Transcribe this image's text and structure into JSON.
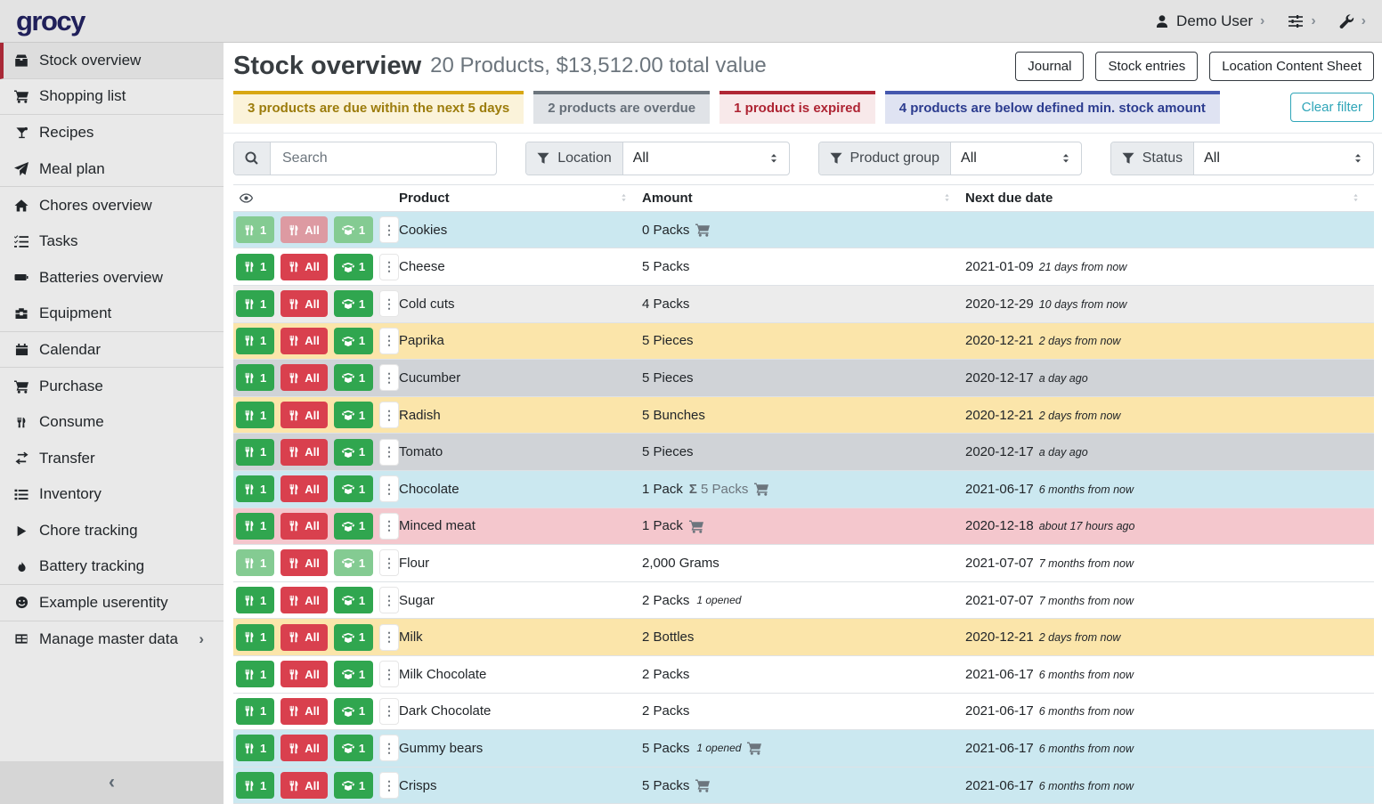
{
  "topbar": {
    "logo": "grocy",
    "user_label": "Demo User"
  },
  "sidebar": {
    "items": [
      {
        "label": "Stock overview",
        "icon": "box",
        "active": true,
        "divider_after": true
      },
      {
        "label": "Shopping list",
        "icon": "cart",
        "divider_after": true
      },
      {
        "label": "Recipes",
        "icon": "glass"
      },
      {
        "label": "Meal plan",
        "icon": "paper-plane",
        "divider_after": true
      },
      {
        "label": "Chores overview",
        "icon": "home"
      },
      {
        "label": "Tasks",
        "icon": "tasks"
      },
      {
        "label": "Batteries overview",
        "icon": "battery"
      },
      {
        "label": "Equipment",
        "icon": "toolbox",
        "divider_after": true
      },
      {
        "label": "Calendar",
        "icon": "calendar",
        "divider_after": true
      },
      {
        "label": "Purchase",
        "icon": "cart"
      },
      {
        "label": "Consume",
        "icon": "utensils"
      },
      {
        "label": "Transfer",
        "icon": "exchange"
      },
      {
        "label": "Inventory",
        "icon": "list"
      },
      {
        "label": "Chore tracking",
        "icon": "play"
      },
      {
        "label": "Battery tracking",
        "icon": "fire",
        "divider_after": true
      },
      {
        "label": "Example userentity",
        "icon": "smiley",
        "divider_after": true
      },
      {
        "label": "Manage master data",
        "icon": "table",
        "has_chevron": true
      }
    ],
    "collapse_glyph": "‹"
  },
  "header": {
    "title": "Stock overview",
    "subtitle": "20 Products, $13,512.00 total value",
    "buttons": [
      "Journal",
      "Stock entries",
      "Location Content Sheet"
    ]
  },
  "banners": [
    {
      "text": "3 products are due within the next 5 days",
      "type": "warning"
    },
    {
      "text": "2 products are overdue",
      "type": "secondary"
    },
    {
      "text": "1 product is expired",
      "type": "danger"
    },
    {
      "text": "4 products are below defined min. stock amount",
      "type": "primary"
    }
  ],
  "clear_filter": "Clear filter",
  "filters": {
    "search_placeholder": "Search",
    "groups": [
      {
        "label": "Location",
        "value": "All"
      },
      {
        "label": "Product group",
        "value": "All"
      },
      {
        "label": "Status",
        "value": "All"
      }
    ]
  },
  "table": {
    "columns": [
      "Product",
      "Amount",
      "Next due date"
    ],
    "action_labels": {
      "consume_one": "1",
      "consume_all": "All",
      "open_one": "1"
    },
    "rows": [
      {
        "product": "Cookies",
        "amount": "0 Packs",
        "cart": true,
        "date": "",
        "rel": "",
        "bg": "info",
        "disabled": [
          "consume1",
          "consume_all",
          "open1"
        ]
      },
      {
        "product": "Cheese",
        "amount": "5 Packs",
        "date": "2021-01-09",
        "rel": "21 days from now",
        "bg": "none"
      },
      {
        "product": "Cold cuts",
        "amount": "4 Packs",
        "date": "2020-12-29",
        "rel": "10 days from now",
        "bg": "stripe"
      },
      {
        "product": "Paprika",
        "amount": "5 Pieces",
        "date": "2020-12-21",
        "rel": "2 days from now",
        "bg": "warning"
      },
      {
        "product": "Cucumber",
        "amount": "5 Pieces",
        "date": "2020-12-17",
        "rel": "a day ago",
        "bg": "secondary"
      },
      {
        "product": "Radish",
        "amount": "5 Bunches",
        "date": "2020-12-21",
        "rel": "2 days from now",
        "bg": "warning"
      },
      {
        "product": "Tomato",
        "amount": "5 Pieces",
        "date": "2020-12-17",
        "rel": "a day ago",
        "bg": "secondary"
      },
      {
        "product": "Chocolate",
        "amount": "1 Pack",
        "sum": "5 Packs",
        "cart": true,
        "date": "2021-06-17",
        "rel": "6 months from now",
        "bg": "info"
      },
      {
        "product": "Minced meat",
        "amount": "1 Pack",
        "cart": true,
        "date": "2020-12-18",
        "rel": "about 17 hours ago",
        "bg": "danger"
      },
      {
        "product": "Flour",
        "amount": "2,000 Grams",
        "date": "2021-07-07",
        "rel": "7 months from now",
        "bg": "none",
        "disabled": [
          "consume1",
          "open1"
        ]
      },
      {
        "product": "Sugar",
        "amount": "2 Packs",
        "note": "1 opened",
        "date": "2021-07-07",
        "rel": "7 months from now",
        "bg": "none"
      },
      {
        "product": "Milk",
        "amount": "2 Bottles",
        "date": "2020-12-21",
        "rel": "2 days from now",
        "bg": "warning"
      },
      {
        "product": "Milk Chocolate",
        "amount": "2 Packs",
        "date": "2021-06-17",
        "rel": "6 months from now",
        "bg": "none"
      },
      {
        "product": "Dark Chocolate",
        "amount": "2 Packs",
        "date": "2021-06-17",
        "rel": "6 months from now",
        "bg": "none"
      },
      {
        "product": "Gummy bears",
        "amount": "5 Packs",
        "note": "1 opened",
        "cart": true,
        "date": "2021-06-17",
        "rel": "6 months from now",
        "bg": "info"
      },
      {
        "product": "Crisps",
        "amount": "5 Packs",
        "cart": true,
        "date": "2021-06-17",
        "rel": "6 months from now",
        "bg": "info"
      }
    ]
  },
  "colors": {
    "topbar_bg": "#e3e3e3",
    "sidebar_bg": "#e9e9e9",
    "active_accent_red": "#a82836",
    "button_green": "#30a64f",
    "button_red": "#d9404e",
    "teal_outline": "#2fa5b8",
    "row_info": "#cbe8f0",
    "row_warning": "#fbe5aa",
    "row_secondary": "#d0d3d7",
    "row_danger": "#f4c7cd"
  }
}
